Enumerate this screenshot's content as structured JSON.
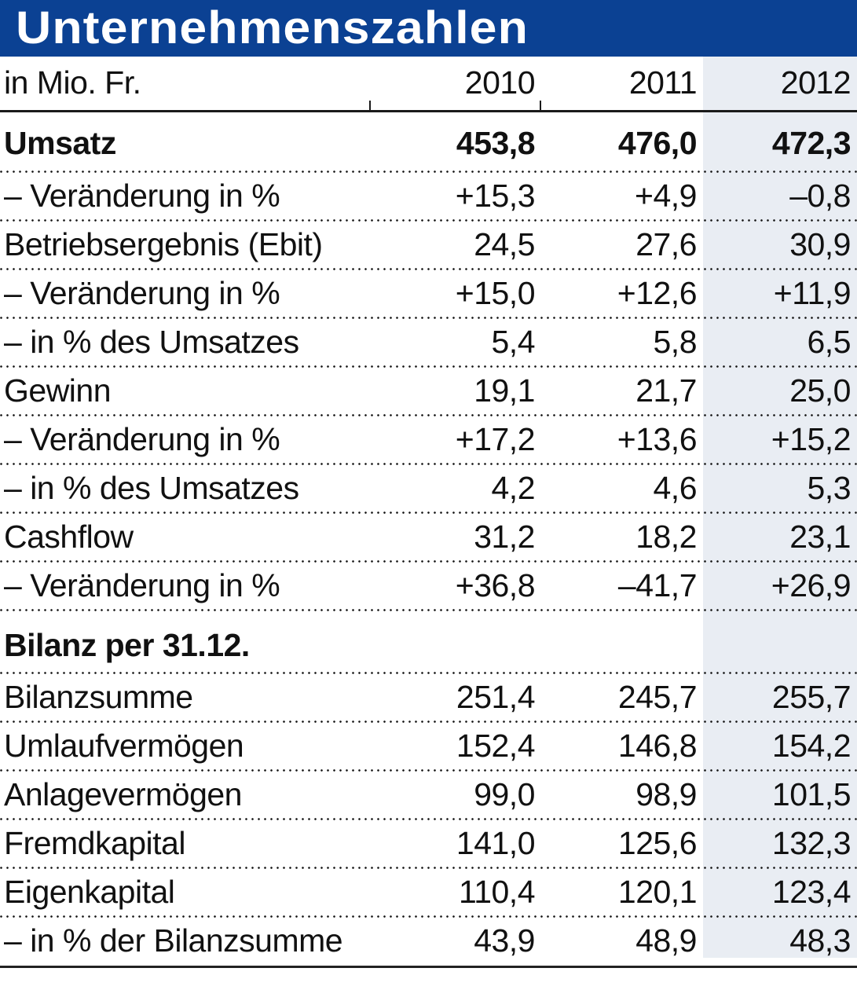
{
  "title": "Unternehmenszahlen",
  "unit_label": "in Mio. Fr.",
  "years": [
    "2010",
    "2011",
    "2012"
  ],
  "colors": {
    "title_bar_bg": "#0B4193",
    "title_text": "#FFFFFF",
    "highlight_column_bg": "#E9EDF3",
    "rule_color": "#1A1A1A",
    "text_color": "#111111"
  },
  "sections": [
    {
      "header": null,
      "rows": [
        {
          "label": "Umsatz",
          "bold": true,
          "values": [
            "453,8",
            "476,0",
            "472,3"
          ]
        },
        {
          "label": "– Veränderung in %",
          "bold": false,
          "values": [
            "+15,3",
            "+4,9",
            "–0,8"
          ]
        },
        {
          "label": "Betriebsergebnis (Ebit)",
          "bold": false,
          "values": [
            "24,5",
            "27,6",
            "30,9"
          ]
        },
        {
          "label": "– Veränderung in %",
          "bold": false,
          "values": [
            "+15,0",
            "+12,6",
            "+11,9"
          ]
        },
        {
          "label": "– in % des Umsatzes",
          "bold": false,
          "values": [
            "5,4",
            "5,8",
            "6,5"
          ]
        },
        {
          "label": "Gewinn",
          "bold": false,
          "values": [
            "19,1",
            "21,7",
            "25,0"
          ]
        },
        {
          "label": "– Veränderung in %",
          "bold": false,
          "values": [
            "+17,2",
            "+13,6",
            "+15,2"
          ]
        },
        {
          "label": "– in % des Umsatzes",
          "bold": false,
          "values": [
            "4,2",
            "4,6",
            "5,3"
          ]
        },
        {
          "label": "Cashflow",
          "bold": false,
          "values": [
            "31,2",
            "18,2",
            "23,1"
          ]
        },
        {
          "label": "– Veränderung in %",
          "bold": false,
          "values": [
            "+36,8",
            "–41,7",
            "+26,9"
          ]
        }
      ]
    },
    {
      "header": "Bilanz per 31.12.",
      "rows": [
        {
          "label": "Bilanzsumme",
          "bold": false,
          "values": [
            "251,4",
            "245,7",
            "255,7"
          ]
        },
        {
          "label": "Umlaufvermögen",
          "bold": false,
          "values": [
            "152,4",
            "146,8",
            "154,2"
          ]
        },
        {
          "label": "Anlagevermögen",
          "bold": false,
          "values": [
            "99,0",
            "98,9",
            "101,5"
          ]
        },
        {
          "label": "Fremdkapital",
          "bold": false,
          "values": [
            "141,0",
            "125,6",
            "132,3"
          ]
        },
        {
          "label": "Eigenkapital",
          "bold": false,
          "values": [
            "110,4",
            "120,1",
            "123,4"
          ]
        },
        {
          "label": "– in % der Bilanzsumme",
          "bold": false,
          "values": [
            "43,9",
            "48,9",
            "48,3"
          ]
        }
      ]
    }
  ],
  "chart_data": {
    "type": "table",
    "title": "Unternehmenszahlen",
    "unit": "in Mio. Fr.",
    "columns": [
      "2010",
      "2011",
      "2012"
    ],
    "rows": [
      {
        "label": "Umsatz",
        "values": [
          453.8,
          476.0,
          472.3
        ]
      },
      {
        "label": "Umsatz Veränderung in %",
        "values": [
          15.3,
          4.9,
          -0.8
        ]
      },
      {
        "label": "Betriebsergebnis (Ebit)",
        "values": [
          24.5,
          27.6,
          30.9
        ]
      },
      {
        "label": "Ebit Veränderung in %",
        "values": [
          15.0,
          12.6,
          11.9
        ]
      },
      {
        "label": "Ebit in % des Umsatzes",
        "values": [
          5.4,
          5.8,
          6.5
        ]
      },
      {
        "label": "Gewinn",
        "values": [
          19.1,
          21.7,
          25.0
        ]
      },
      {
        "label": "Gewinn Veränderung in %",
        "values": [
          17.2,
          13.6,
          15.2
        ]
      },
      {
        "label": "Gewinn in % des Umsatzes",
        "values": [
          4.2,
          4.6,
          5.3
        ]
      },
      {
        "label": "Cashflow",
        "values": [
          31.2,
          18.2,
          23.1
        ]
      },
      {
        "label": "Cashflow Veränderung in %",
        "values": [
          36.8,
          -41.7,
          26.9
        ]
      },
      {
        "label": "Bilanzsumme",
        "values": [
          251.4,
          245.7,
          255.7
        ]
      },
      {
        "label": "Umlaufvermögen",
        "values": [
          152.4,
          146.8,
          154.2
        ]
      },
      {
        "label": "Anlagevermögen",
        "values": [
          99.0,
          98.9,
          101.5
        ]
      },
      {
        "label": "Fremdkapital",
        "values": [
          141.0,
          125.6,
          132.3
        ]
      },
      {
        "label": "Eigenkapital",
        "values": [
          110.4,
          120.1,
          123.4
        ]
      },
      {
        "label": "Eigenkapital in % der Bilanzsumme",
        "values": [
          43.9,
          48.9,
          48.3
        ]
      }
    ]
  }
}
